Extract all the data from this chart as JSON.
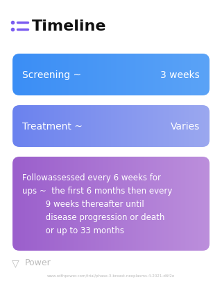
{
  "title": "Timeline",
  "background_color": "#ffffff",
  "title_color": "#111111",
  "title_fontsize": 16,
  "title_icon_color": "#7B5CF0",
  "cards": [
    {
      "label_left": "Screening ~",
      "label_right": "3 weeks",
      "color_left": "#3B8EF5",
      "color_right": "#5BA3F7",
      "text_color": "#ffffff",
      "font_size": 10
    },
    {
      "label_left": "Treatment ~",
      "label_right": "Varies",
      "color_left": "#6B82EE",
      "color_right": "#9BA8F0",
      "text_color": "#ffffff",
      "font_size": 10
    },
    {
      "label_left": "Followassessed every 6 weeks for\nups ~  the first 6 months then every\n         9 weeks thereafter until\n         disease progression or death\n         or up to 33 months",
      "label_right": "",
      "color_left": "#9B5FCC",
      "color_right": "#BC8FDC",
      "text_color": "#ffffff",
      "font_size": 8.5
    }
  ],
  "footer_logo_text": "Power",
  "footer_url": "www.withpower.com/trial/phase-3-breast-neoplasms-4-2021-d6f2e",
  "footer_color": "#bbbbbb",
  "fig_width": 3.2,
  "fig_height": 4.06,
  "dpi": 100
}
